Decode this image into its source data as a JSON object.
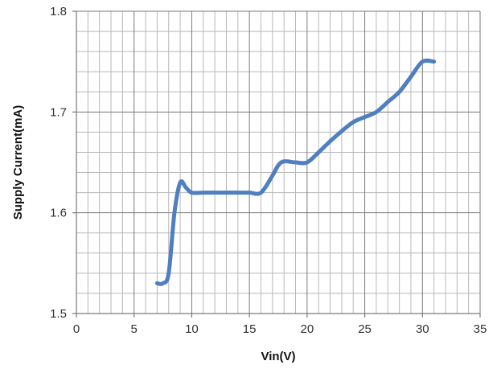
{
  "chart_data": {
    "type": "line",
    "title": "",
    "xlabel": "Vin(V)",
    "ylabel": "Supply Current(mA)",
    "xlim": [
      0,
      35
    ],
    "ylim": [
      1.5,
      1.8
    ],
    "x_ticks": [
      "0",
      "5",
      "10",
      "15",
      "20",
      "25",
      "30",
      "35"
    ],
    "y_ticks": [
      "1.5",
      "1.6",
      "1.7",
      "1.8"
    ],
    "x_major_step": 5,
    "x_minor_step": 1,
    "y_major_step": 0.1,
    "y_minor_step": 0.02,
    "grid": true,
    "legend": "none",
    "series_color": "#4f7fc0",
    "series": [
      {
        "x": [
          7,
          7.5,
          8,
          8.5,
          9,
          9.5,
          10,
          11,
          12,
          13,
          14,
          15,
          16,
          17,
          17.5,
          18,
          19,
          20,
          21,
          22,
          23,
          24,
          25,
          26,
          27,
          28,
          29,
          30,
          31
        ],
        "values": [
          1.53,
          1.53,
          1.54,
          1.6,
          1.63,
          1.625,
          1.62,
          1.62,
          1.62,
          1.62,
          1.62,
          1.62,
          1.62,
          1.637,
          1.647,
          1.651,
          1.65,
          1.65,
          1.66,
          1.671,
          1.681,
          1.69,
          1.695,
          1.7,
          1.71,
          1.72,
          1.735,
          1.75,
          1.75
        ]
      }
    ]
  }
}
